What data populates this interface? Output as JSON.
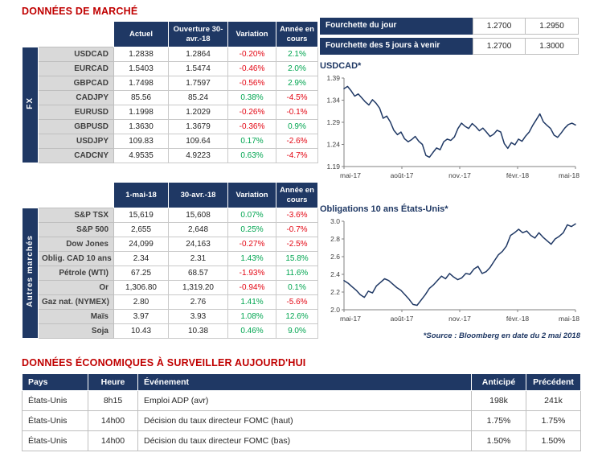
{
  "page": {
    "market_title": "DONNÉES DE MARCHÉ",
    "econ_title": "DONNÉES ÉCONOMIQUES À SURVEILLER AUJOURD'HUI",
    "source_note": "*Source : Bloomberg en date du 2 mai 2018"
  },
  "colors": {
    "navy": "#1F3864",
    "title_red": "#C00000",
    "positive": "#00A550",
    "negative": "#E30613",
    "label_gray": "#D9D9D9"
  },
  "fx_table": {
    "group_label": "FX",
    "headers": [
      "Actuel",
      "Ouverture 30-avr.-18",
      "Variation",
      "Année en cours"
    ],
    "rows": [
      {
        "label": "USDCAD",
        "values": [
          "1.2838",
          "1.2864",
          "-0.20%",
          "2.1%"
        ]
      },
      {
        "label": "EURCAD",
        "values": [
          "1.5403",
          "1.5474",
          "-0.46%",
          "2.0%"
        ]
      },
      {
        "label": "GBPCAD",
        "values": [
          "1.7498",
          "1.7597",
          "-0.56%",
          "2.9%"
        ]
      },
      {
        "label": "CADJPY",
        "values": [
          "85.56",
          "85.24",
          "0.38%",
          "-4.5%"
        ]
      },
      {
        "label": "EURUSD",
        "values": [
          "1.1998",
          "1.2029",
          "-0.26%",
          "-0.1%"
        ]
      },
      {
        "label": "GBPUSD",
        "values": [
          "1.3630",
          "1.3679",
          "-0.36%",
          "0.9%"
        ]
      },
      {
        "label": "USDJPY",
        "values": [
          "109.83",
          "109.64",
          "0.17%",
          "-2.6%"
        ]
      },
      {
        "label": "CADCNY",
        "values": [
          "4.9535",
          "4.9223",
          "0.63%",
          "-4.7%"
        ]
      }
    ]
  },
  "markets_table": {
    "group_label": "Autres marchés",
    "headers": [
      "1-mai-18",
      "30-avr.-18",
      "Variation",
      "Année en cours"
    ],
    "rows": [
      {
        "label": "S&P TSX",
        "values": [
          "15,619",
          "15,608",
          "0.07%",
          "-3.6%"
        ]
      },
      {
        "label": "S&P 500",
        "values": [
          "2,655",
          "2,648",
          "0.25%",
          "-0.7%"
        ]
      },
      {
        "label": "Dow Jones",
        "values": [
          "24,099",
          "24,163",
          "-0.27%",
          "-2.5%"
        ]
      },
      {
        "label": "Oblig. CAD 10 ans",
        "values": [
          "2.34",
          "2.31",
          "1.43%",
          "15.8%"
        ]
      },
      {
        "label": "Pétrole (WTI)",
        "values": [
          "67.25",
          "68.57",
          "-1.93%",
          "11.6%"
        ]
      },
      {
        "label": "Or",
        "values": [
          "1,306.80",
          "1,319.20",
          "-0.94%",
          "0.1%"
        ]
      },
      {
        "label": "Gaz nat. (NYMEX)",
        "values": [
          "2.80",
          "2.76",
          "1.41%",
          "-5.6%"
        ]
      },
      {
        "label": "Maïs",
        "values": [
          "3.97",
          "3.93",
          "1.08%",
          "12.6%"
        ]
      },
      {
        "label": "Soja",
        "values": [
          "10.43",
          "10.38",
          "0.46%",
          "9.0%"
        ]
      }
    ]
  },
  "fourchette": {
    "rows": [
      {
        "label": "Fourchette du jour",
        "low": "1.2700",
        "high": "1.2950"
      },
      {
        "label": "Fourchette des 5 jours à venir",
        "low": "1.2700",
        "high": "1.3000"
      }
    ]
  },
  "econ_table": {
    "headers": [
      "Pays",
      "Heure",
      "Événement",
      "Anticipé",
      "Précédent"
    ],
    "rows": [
      {
        "values": [
          "États-Unis",
          "8h15",
          "Emploi ADP (avr)",
          "198k",
          "241k"
        ]
      },
      {
        "values": [
          "États-Unis",
          "14h00",
          "Décision du taux directeur FOMC (haut)",
          "1.75%",
          "1.75%"
        ]
      },
      {
        "values": [
          "États-Unis",
          "14h00",
          "Décision du taux directeur FOMC (bas)",
          "1.50%",
          "1.50%"
        ]
      }
    ]
  },
  "chart_data": [
    {
      "type": "line",
      "title": "USDCAD*",
      "ylim": [
        1.19,
        1.39
      ],
      "yticks": [
        "1.19",
        "1.24",
        "1.29",
        "1.34",
        "1.39"
      ],
      "xlabels": [
        "mai-17",
        "août-17",
        "nov.-17",
        "févr.-18",
        "mai-18"
      ],
      "line_color": "#1F3864",
      "values": [
        1.366,
        1.371,
        1.361,
        1.349,
        1.354,
        1.345,
        1.336,
        1.329,
        1.341,
        1.333,
        1.322,
        1.299,
        1.304,
        1.291,
        1.272,
        1.262,
        1.268,
        1.253,
        1.246,
        1.251,
        1.258,
        1.247,
        1.24,
        1.215,
        1.211,
        1.222,
        1.232,
        1.228,
        1.246,
        1.252,
        1.249,
        1.257,
        1.276,
        1.288,
        1.281,
        1.276,
        1.287,
        1.28,
        1.271,
        1.277,
        1.268,
        1.258,
        1.263,
        1.272,
        1.268,
        1.242,
        1.231,
        1.244,
        1.239,
        1.252,
        1.247,
        1.259,
        1.268,
        1.283,
        1.296,
        1.309,
        1.291,
        1.283,
        1.276,
        1.261,
        1.256,
        1.266,
        1.277,
        1.285,
        1.288,
        1.284
      ]
    },
    {
      "type": "line",
      "title": "Obligations 10 ans États-Unis*",
      "ylim": [
        2.0,
        3.0
      ],
      "yticks": [
        "2.0",
        "2.2",
        "2.4",
        "2.6",
        "2.8",
        "3.0"
      ],
      "xlabels": [
        "mai-17",
        "août-17",
        "nov.-17",
        "févr.-18",
        "mai-18"
      ],
      "line_color": "#1F3864",
      "values": [
        2.33,
        2.3,
        2.26,
        2.22,
        2.17,
        2.14,
        2.21,
        2.19,
        2.27,
        2.31,
        2.35,
        2.33,
        2.29,
        2.25,
        2.22,
        2.17,
        2.12,
        2.06,
        2.05,
        2.11,
        2.17,
        2.24,
        2.28,
        2.33,
        2.38,
        2.35,
        2.41,
        2.37,
        2.34,
        2.36,
        2.41,
        2.4,
        2.46,
        2.49,
        2.41,
        2.43,
        2.48,
        2.55,
        2.62,
        2.66,
        2.72,
        2.84,
        2.87,
        2.91,
        2.87,
        2.89,
        2.84,
        2.81,
        2.87,
        2.82,
        2.78,
        2.74,
        2.8,
        2.83,
        2.87,
        2.96,
        2.94,
        2.97
      ]
    }
  ]
}
